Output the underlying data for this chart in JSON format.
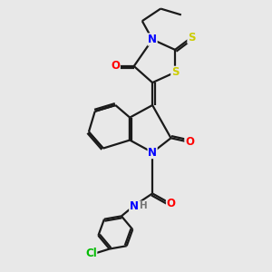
{
  "background_color": "#e8e8e8",
  "line_color": "#1a1a1a",
  "bond_width": 1.6,
  "colors": {
    "N": "#0000ff",
    "O": "#ff0000",
    "S": "#cccc00",
    "Cl": "#00bb00",
    "H": "#777777",
    "C": "#1a1a1a"
  },
  "font_size": 8.5,
  "figsize": [
    3.0,
    3.0
  ],
  "dpi": 100
}
